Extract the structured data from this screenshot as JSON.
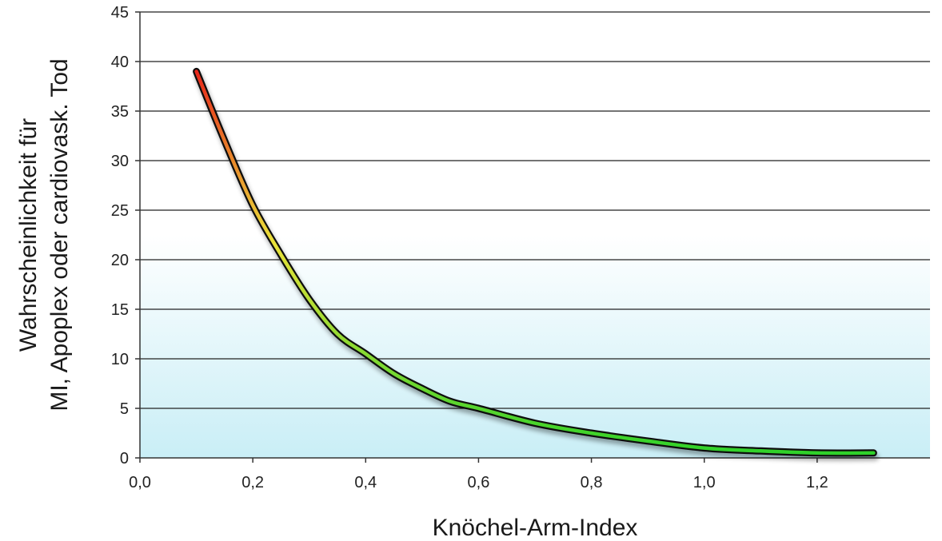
{
  "chart_data": {
    "type": "line",
    "title": "",
    "xlabel": "Knöchel-Arm-Index",
    "ylabel_lines": [
      "Wahrscheinlichkeit für",
      "MI, Apoplex oder cardiovask. Tod"
    ],
    "xlim": [
      0,
      1.4
    ],
    "ylim": [
      0,
      45
    ],
    "x_ticks": [
      0,
      0.2,
      0.4,
      0.6,
      0.8,
      1.0,
      1.2
    ],
    "x_tick_labels": [
      "0,0",
      "0,2",
      "0,4",
      "0,6",
      "0,8",
      "1,0",
      "1,2"
    ],
    "y_ticks": [
      0,
      5,
      10,
      15,
      20,
      25,
      30,
      35,
      40,
      45
    ],
    "y_tick_labels": [
      "0",
      "5",
      "10",
      "15",
      "20",
      "25",
      "30",
      "35",
      "40",
      "45"
    ],
    "grid": "horizontal",
    "legend": "none",
    "series": [
      {
        "x": [
          0.1,
          0.15,
          0.2,
          0.25,
          0.3,
          0.35,
          0.4,
          0.45,
          0.5,
          0.55,
          0.6,
          0.7,
          0.8,
          0.9,
          1.0,
          1.1,
          1.2,
          1.3
        ],
        "y": [
          39.0,
          32.0,
          25.5,
          20.5,
          16.0,
          12.5,
          10.5,
          8.5,
          7.0,
          5.7,
          5.0,
          3.5,
          2.5,
          1.7,
          1.0,
          0.7,
          0.5,
          0.5
        ]
      }
    ],
    "colors": {
      "line_start": "#e8281c",
      "line_mid": "#e9e23a",
      "line_end": "#2fd12a",
      "outline": "#111111",
      "bg_band_top": "#ffffff",
      "bg_band_bottom": "#c9eef6",
      "grid": "#222222"
    }
  }
}
